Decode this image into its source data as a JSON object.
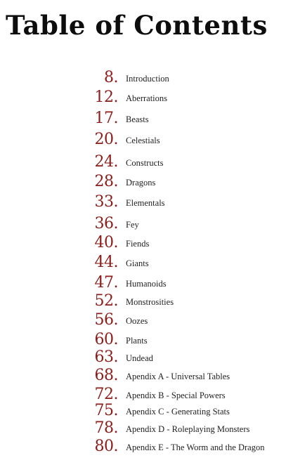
{
  "title": "Table of Contents",
  "accent_color": "#8b1d1a",
  "entries": [
    {
      "page": "8.",
      "label": "Introduction"
    },
    {
      "page": "12.",
      "label": "Aberrations"
    },
    {
      "page": "17.",
      "label": "Beasts"
    },
    {
      "page": "20.",
      "label": "Celestials"
    },
    {
      "page": "24.",
      "label": "Constructs"
    },
    {
      "page": "28.",
      "label": "Dragons"
    },
    {
      "page": "33.",
      "label": "Elementals"
    },
    {
      "page": "36.",
      "label": "Fey"
    },
    {
      "page": "40.",
      "label": "Fiends"
    },
    {
      "page": "44.",
      "label": "Giants"
    },
    {
      "page": "47.",
      "label": "Humanoids"
    },
    {
      "page": "52.",
      "label": "Monstrosities"
    },
    {
      "page": "56.",
      "label": "Oozes"
    },
    {
      "page": "60.",
      "label": "Plants"
    },
    {
      "page": "63.",
      "label": "Undead"
    },
    {
      "page": "68.",
      "label": "Apendix A - Universal Tables"
    },
    {
      "page": "72.",
      "label": "Apendix B - Special Powers"
    },
    {
      "page": "75.",
      "label": "Apendix C - Generating Stats"
    },
    {
      "page": "78.",
      "label": "Apendix D - Roleplaying Monsters"
    },
    {
      "page": "80.",
      "label": "Apendix E - The Worm and the Dragon"
    }
  ]
}
